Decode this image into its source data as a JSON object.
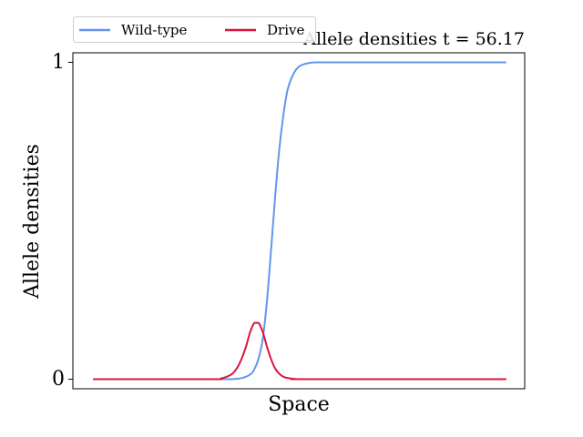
{
  "chart_data": {
    "type": "line",
    "title": "Allele densities t = 56.17",
    "xlabel": "Space",
    "ylabel": "Allele densities",
    "xlim": [
      0,
      1
    ],
    "ylim": [
      -0.03,
      1.03
    ],
    "x_ticks": [],
    "y_ticks": [
      {
        "value": 0,
        "label": "0"
      },
      {
        "value": 1,
        "label": "1"
      }
    ],
    "grid": false,
    "legend": {
      "placement": "top-left, above plot",
      "columns": 2
    },
    "colors": {
      "wild_type": "#6495ED",
      "drive": "#DC143C"
    },
    "series": [
      {
        "name": "Wild-type",
        "color": "#6495ED",
        "x": [
          0.0,
          0.3,
          0.34,
          0.36,
          0.38,
          0.39,
          0.4,
          0.41,
          0.42,
          0.43,
          0.44,
          0.45,
          0.46,
          0.47,
          0.48,
          0.49,
          0.5,
          0.51,
          0.52,
          0.53,
          0.54,
          0.55,
          0.57,
          0.6,
          0.65,
          0.7,
          1.0
        ],
        "values": [
          0.0,
          0.0,
          0.001,
          0.004,
          0.015,
          0.032,
          0.065,
          0.125,
          0.24,
          0.4,
          0.57,
          0.72,
          0.83,
          0.91,
          0.95,
          0.975,
          0.988,
          0.994,
          0.997,
          0.999,
          1.0,
          1.0,
          1.0,
          1.0,
          1.0,
          1.0,
          1.0
        ]
      },
      {
        "name": "Drive",
        "color": "#DC143C",
        "x": [
          0.0,
          0.28,
          0.31,
          0.33,
          0.34,
          0.35,
          0.36,
          0.37,
          0.38,
          0.39,
          0.4,
          0.41,
          0.42,
          0.43,
          0.44,
          0.45,
          0.46,
          0.47,
          0.48,
          0.5,
          0.52,
          1.0
        ],
        "values": [
          0.0,
          0.0,
          0.003,
          0.012,
          0.022,
          0.04,
          0.068,
          0.105,
          0.15,
          0.178,
          0.178,
          0.15,
          0.105,
          0.065,
          0.035,
          0.018,
          0.008,
          0.004,
          0.002,
          0.0,
          0.0,
          0.0
        ]
      }
    ]
  }
}
